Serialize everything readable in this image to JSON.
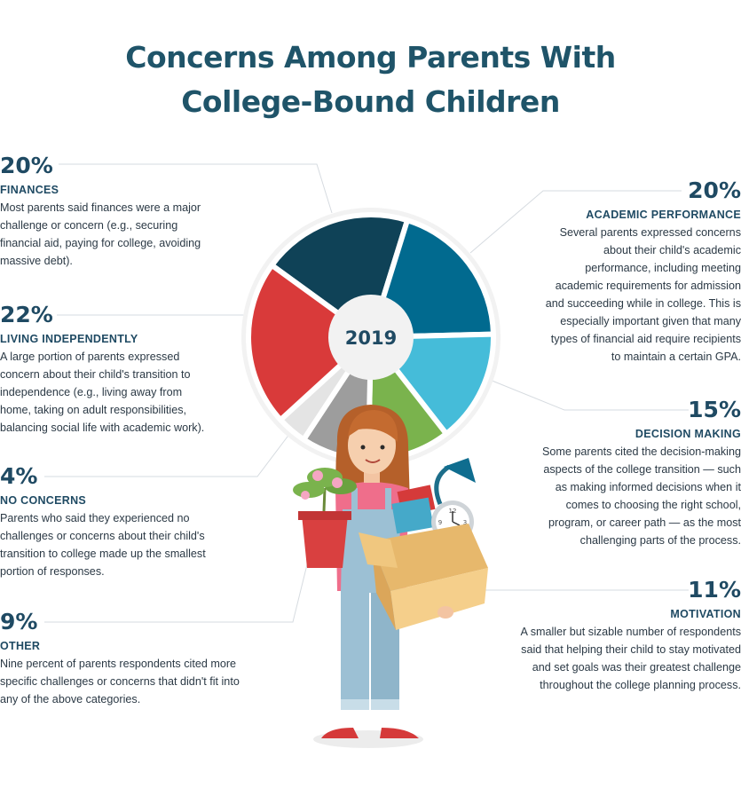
{
  "title": {
    "line1": "Concerns Among Parents With",
    "line2": "College-Bound Children"
  },
  "chart_data": {
    "type": "pie",
    "center_label": "2019",
    "slices": [
      {
        "label": "FINANCES",
        "value": 20,
        "color": "#0f4257"
      },
      {
        "label": "ACADEMIC PERFORMANCE",
        "value": 20,
        "color": "#016a8f"
      },
      {
        "label": "DECISION MAKING",
        "value": 15,
        "color": "#45bcd9"
      },
      {
        "label": "MOTIVATION",
        "value": 11,
        "color": "#7ab34d"
      },
      {
        "label": "OTHER",
        "value": 9,
        "color": "#9d9d9d"
      },
      {
        "label": "NO CONCERNS",
        "value": 4,
        "color": "#e4e4e4"
      },
      {
        "label": "LIVING INDEPENDENTLY",
        "value": 22,
        "color": "#d93a3a"
      }
    ]
  },
  "categories": {
    "finances": {
      "pct": "20%",
      "label": "FINANCES",
      "desc": [
        "Most parents said finances were a major",
        "challenge or concern (e.g., securing",
        "financial aid, paying for college, avoiding",
        "massive debt)."
      ]
    },
    "living": {
      "pct": "22%",
      "label": "LIVING INDEPENDENTLY",
      "desc": [
        "A large portion of parents expressed",
        "concern about their child's transition to",
        "independence (e.g., living away from",
        "home, taking on adult responsibilities,",
        "balancing social life with academic work)."
      ]
    },
    "noconcerns": {
      "pct": "4%",
      "label": "NO CONCERNS",
      "desc": [
        "Parents who said they experienced no",
        "challenges or concerns about their child's",
        "transition to college made up the smallest",
        "portion of responses."
      ]
    },
    "other": {
      "pct": "9%",
      "label": "OTHER",
      "desc": [
        "Nine percent of parents respondents cited more",
        "specific challenges or concerns that didn't fit into",
        "any of the above categories."
      ]
    },
    "academic": {
      "pct": "20%",
      "label": "ACADEMIC PERFORMANCE",
      "desc": [
        "Several parents expressed concerns",
        "about their child's academic",
        "performance, including meeting",
        "academic requirements for admission",
        "and succeeding while in college. This is",
        "especially important given that many",
        "types of financial aid require recipients",
        "to maintain a certain GPA."
      ]
    },
    "decision": {
      "pct": "15%",
      "label": "DECISION MAKING",
      "desc": [
        "Some parents cited the decision-making",
        "aspects of the college transition — such",
        "as making informed decisions when it",
        "comes to choosing the right school,",
        "program, or career path — as the most",
        "challenging parts of the process."
      ]
    },
    "motivation": {
      "pct": "11%",
      "label": "MOTIVATION",
      "desc": [
        "A smaller but sizable number of respondents",
        "said that helping their child to stay motivated",
        "and set goals was their greatest challenge",
        "throughout the college planning process."
      ]
    }
  },
  "colors": {
    "title": "#1f5469",
    "heading": "#1f4a63",
    "leader_line": "#d6dbe0"
  },
  "illustration": {
    "icon": "girl-with-plant-and-box-illustration",
    "clock_digits": [
      "12",
      "3",
      "6",
      "9"
    ]
  }
}
